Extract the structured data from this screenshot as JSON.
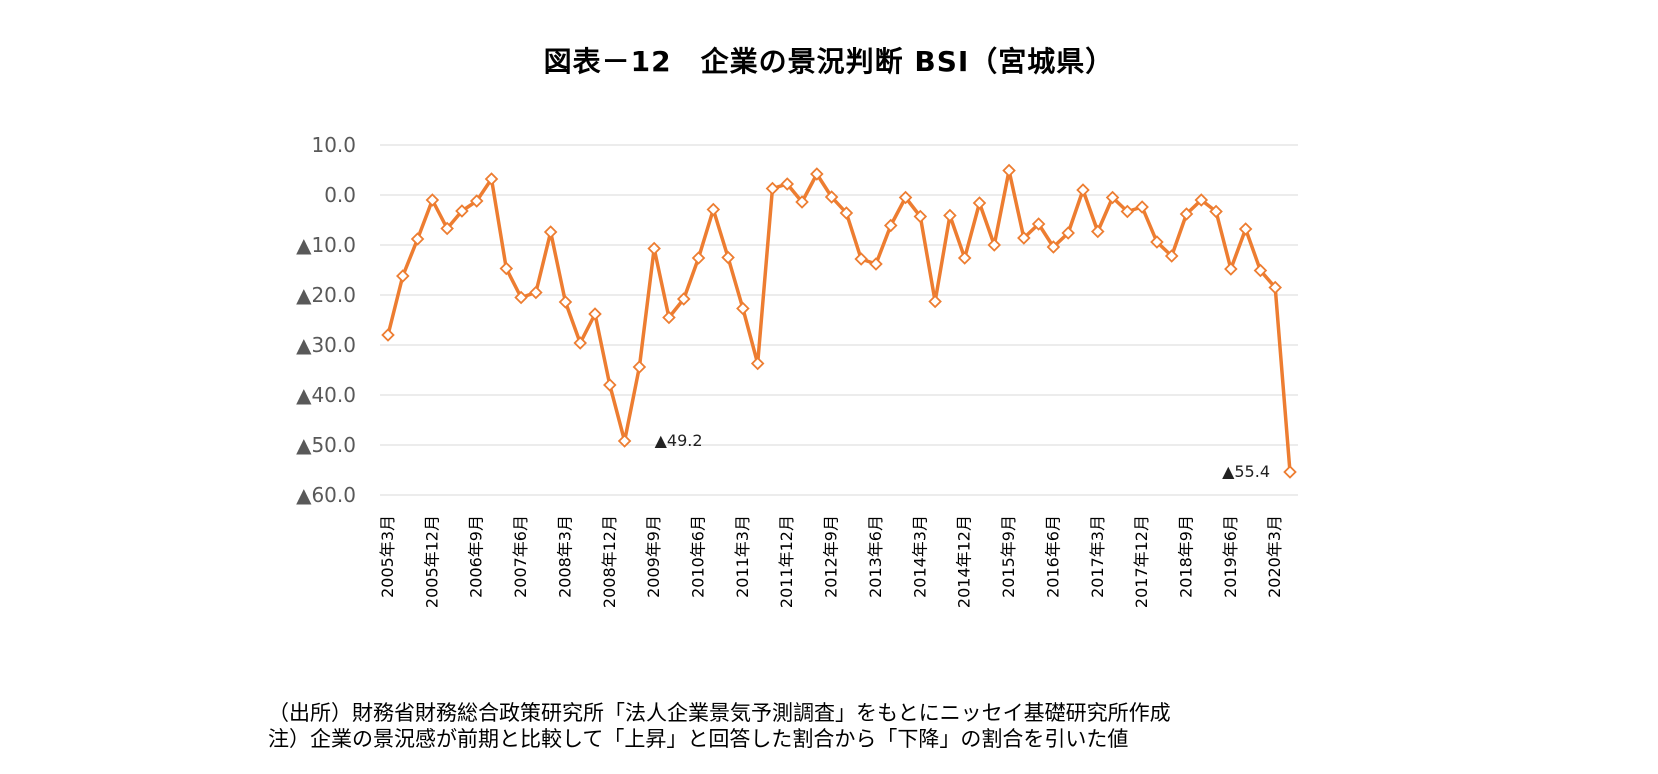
{
  "title": "図表－12　企業の景況判断 BSI（宮城県）",
  "notes": {
    "source": "（出所）財務省財務総合政策研究所「法人企業景気予測調査」をもとにニッセイ基礎研究所作成",
    "note": "注）企業の景況感が前期と比較して「上昇」と回答した割合から「下降」の割合を引いた値"
  },
  "chart_data": {
    "type": "line",
    "ylim": [
      -60,
      10
    ],
    "y_ticks": [
      {
        "value": 10,
        "label": "10.0"
      },
      {
        "value": 0,
        "label": "0.0"
      },
      {
        "value": -10,
        "label": "▲10.0"
      },
      {
        "value": -20,
        "label": "▲20.0"
      },
      {
        "value": -30,
        "label": "▲30.0"
      },
      {
        "value": -40,
        "label": "▲40.0"
      },
      {
        "value": -50,
        "label": "▲50.0"
      },
      {
        "value": -60,
        "label": "▲60.0"
      }
    ],
    "grid": true,
    "color": "#ED7D31",
    "x_tick_labels": [
      "2005年3月",
      "2005年12月",
      "2006年9月",
      "2007年6月",
      "2008年3月",
      "2008年12月",
      "2009年9月",
      "2010年6月",
      "2011年3月",
      "2011年12月",
      "2012年9月",
      "2013年6月",
      "2014年3月",
      "2014年12月",
      "2015年9月",
      "2016年6月",
      "2017年3月",
      "2017年12月",
      "2018年9月",
      "2019年6月",
      "2020年3月"
    ],
    "x": [
      "2005年3月",
      "2005年6月",
      "2005年9月",
      "2005年12月",
      "2006年3月",
      "2006年6月",
      "2006年9月",
      "2006年12月",
      "2007年3月",
      "2007年6月",
      "2007年9月",
      "2007年12月",
      "2008年3月",
      "2008年6月",
      "2008年9月",
      "2008年12月",
      "2009年3月",
      "2009年6月",
      "2009年9月",
      "2009年12月",
      "2010年3月",
      "2010年6月",
      "2010年9月",
      "2010年12月",
      "2011年3月",
      "2011年6月",
      "2011年9月",
      "2011年12月",
      "2012年3月",
      "2012年6月",
      "2012年9月",
      "2012年12月",
      "2013年3月",
      "2013年6月",
      "2013年9月",
      "2013年12月",
      "2014年3月",
      "2014年6月",
      "2014年9月",
      "2014年12月",
      "2015年3月",
      "2015年6月",
      "2015年9月",
      "2015年12月",
      "2016年3月",
      "2016年6月",
      "2016年9月",
      "2016年12月",
      "2017年3月",
      "2017年6月",
      "2017年9月",
      "2017年12月",
      "2018年3月",
      "2018年6月",
      "2018年9月",
      "2018年12月",
      "2019年3月",
      "2019年6月",
      "2019年9月",
      "2019年12月",
      "2020年3月",
      "2020年6月"
    ],
    "values": [
      -28.0,
      -16.2,
      -8.8,
      -1.0,
      -6.7,
      -3.2,
      -1.2,
      3.2,
      -14.7,
      -20.5,
      -19.5,
      -7.4,
      -21.4,
      -29.6,
      -23.8,
      -38.0,
      -49.2,
      -34.4,
      -10.7,
      -24.5,
      -20.8,
      -12.6,
      -2.9,
      -12.5,
      -22.7,
      -33.7,
      1.3,
      2.2,
      -1.4,
      4.2,
      -0.4,
      -3.6,
      -12.8,
      -13.8,
      -6.1,
      -0.5,
      -4.3,
      -21.3,
      -4.1,
      -12.6,
      -1.6,
      -10.0,
      4.9,
      -8.6,
      -5.8,
      -10.4,
      -7.6,
      1.0,
      -7.3,
      -0.5,
      -3.3,
      -2.4,
      -9.4,
      -12.2,
      -3.8,
      -1.0,
      -3.3,
      -14.8,
      -6.8,
      -15.1,
      -18.5,
      -55.4
    ],
    "annotations": [
      {
        "point_index": 16,
        "label": "▲49.2",
        "side": "right"
      },
      {
        "point_index": 61,
        "label": "▲55.4",
        "side": "left"
      }
    ]
  }
}
